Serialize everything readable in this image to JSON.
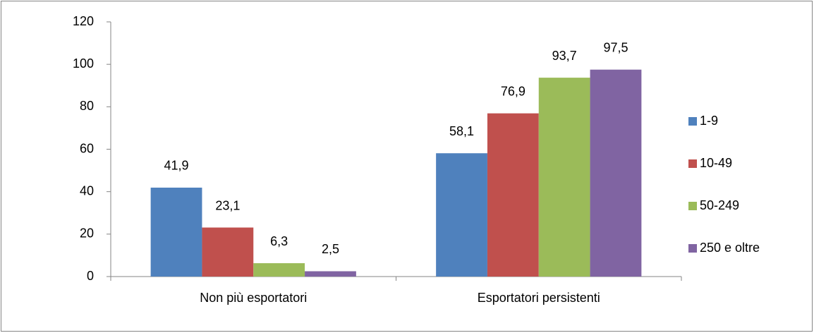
{
  "chart_data": {
    "type": "bar",
    "categories": [
      "Non più esportatori",
      "Esportatori persistenti"
    ],
    "series": [
      {
        "name": "1-9",
        "color": "#4f81bd",
        "values": [
          41.9,
          58.1
        ],
        "value_labels": [
          "41,9",
          "58,1"
        ]
      },
      {
        "name": "10-49",
        "color": "#c0504d",
        "values": [
          23.1,
          76.9
        ],
        "value_labels": [
          "23,1",
          "76,9"
        ]
      },
      {
        "name": "50-249",
        "color": "#9bbb59",
        "values": [
          6.3,
          93.7
        ],
        "value_labels": [
          "6,3",
          "93,7"
        ]
      },
      {
        "name": "250 e oltre",
        "color": "#8064a2",
        "values": [
          2.5,
          97.5
        ],
        "value_labels": [
          "2,5",
          "97,5"
        ]
      }
    ],
    "ylim": [
      0,
      120
    ],
    "yticks": [
      0,
      20,
      40,
      60,
      80,
      100,
      120
    ],
    "grid": false,
    "legend": "right"
  }
}
